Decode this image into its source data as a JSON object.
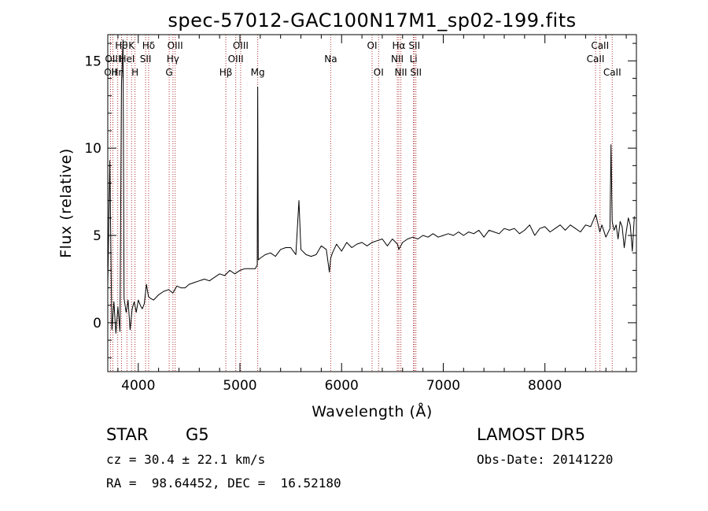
{
  "chart_data": {
    "type": "line",
    "title": "spec-57012-GAC100N17M1_sp02-199.fits",
    "xlabel": "Wavelength (Å)",
    "ylabel": "Flux (relative)",
    "xlim": [
      3700,
      8900
    ],
    "ylim": [
      -2.8,
      16.5
    ],
    "x_ticks": [
      4000,
      5000,
      6000,
      7000,
      8000
    ],
    "x_tick_labels": [
      "4000",
      "5000",
      "6000",
      "7000",
      "8000"
    ],
    "y_ticks": [
      0,
      5,
      10,
      15
    ],
    "y_tick_labels": [
      "0",
      "5",
      "10",
      "15"
    ],
    "grid": false,
    "series": [
      {
        "x": [
          3700,
          3720,
          3740,
          3760,
          3780,
          3800,
          3820,
          3835,
          3850,
          3860,
          3870,
          3880,
          3890,
          3900,
          3920,
          3940,
          3960,
          3970,
          3980,
          4000,
          4020,
          4040,
          4060,
          4080,
          4100,
          4120,
          4150,
          4200,
          4250,
          4300,
          4340,
          4380,
          4420,
          4460,
          4500,
          4550,
          4600,
          4650,
          4700,
          4750,
          4800,
          4850,
          4900,
          4950,
          5000,
          5050,
          5100,
          5150,
          5170,
          5175,
          5180,
          5200,
          5250,
          5300,
          5350,
          5400,
          5450,
          5500,
          5550,
          5580,
          5600,
          5650,
          5700,
          5750,
          5800,
          5850,
          5880,
          5893,
          5910,
          5950,
          6000,
          6050,
          6100,
          6150,
          6200,
          6250,
          6300,
          6350,
          6400,
          6450,
          6500,
          6550,
          6563,
          6600,
          6650,
          6700,
          6750,
          6800,
          6850,
          6900,
          6950,
          7000,
          7050,
          7100,
          7150,
          7200,
          7250,
          7300,
          7350,
          7400,
          7450,
          7500,
          7550,
          7600,
          7650,
          7700,
          7750,
          7800,
          7850,
          7900,
          7950,
          8000,
          8050,
          8100,
          8150,
          8200,
          8250,
          8300,
          8350,
          8400,
          8450,
          8500,
          8540,
          8560,
          8600,
          8640,
          8650,
          8662,
          8680,
          8700,
          8720,
          8740,
          8760,
          8780,
          8800,
          8820,
          8840,
          8860,
          8880
        ],
        "y": [
          2.1,
          9.3,
          -0.4,
          1.2,
          -0.6,
          0.9,
          -0.5,
          13.6,
          16.2,
          1.4,
          1.0,
          0.6,
          0.9,
          1.3,
          -0.4,
          0.8,
          1.2,
          0.9,
          0.6,
          1.3,
          1.0,
          0.8,
          1.1,
          2.2,
          1.5,
          1.4,
          1.3,
          1.6,
          1.8,
          1.9,
          1.7,
          2.1,
          2.0,
          2.0,
          2.2,
          2.3,
          2.4,
          2.5,
          2.4,
          2.6,
          2.8,
          2.7,
          3.0,
          2.8,
          3.0,
          3.1,
          3.1,
          3.1,
          3.3,
          13.5,
          3.6,
          3.7,
          3.9,
          4.0,
          3.8,
          4.2,
          4.3,
          4.3,
          3.9,
          7.0,
          4.2,
          3.9,
          3.8,
          3.9,
          4.4,
          4.2,
          2.9,
          3.7,
          4.0,
          4.5,
          4.1,
          4.6,
          4.3,
          4.5,
          4.6,
          4.4,
          4.6,
          4.7,
          4.8,
          4.4,
          4.8,
          4.5,
          4.2,
          4.6,
          4.8,
          4.9,
          4.8,
          5.0,
          4.9,
          5.1,
          4.9,
          5.0,
          5.1,
          5.0,
          5.2,
          5.0,
          5.2,
          5.1,
          5.3,
          4.9,
          5.3,
          5.2,
          5.1,
          5.4,
          5.3,
          5.4,
          5.1,
          5.3,
          5.6,
          5.0,
          5.4,
          5.5,
          5.2,
          5.4,
          5.6,
          5.3,
          5.6,
          5.4,
          5.2,
          5.6,
          5.5,
          6.2,
          5.2,
          5.6,
          4.9,
          5.4,
          10.2,
          5.8,
          5.3,
          5.6,
          4.8,
          5.8,
          5.5,
          4.3,
          5.2,
          6.0,
          5.6,
          4.1,
          6.1
        ]
      }
    ],
    "lines": [
      {
        "wl": 3727,
        "label": "OII",
        "row": 3
      },
      {
        "wl": 3750,
        "label": "OIII",
        "row": 2
      },
      {
        "wl": 3798,
        "label": "Hη",
        "row": 3
      },
      {
        "wl": 3835,
        "label": "Hθ",
        "row": 1
      },
      {
        "wl": 3889,
        "label": "HeI",
        "row": 2
      },
      {
        "wl": 3934,
        "label": "K",
        "row": 1
      },
      {
        "wl": 3968,
        "label": "H",
        "row": 3
      },
      {
        "wl": 4072,
        "label": "SII",
        "row": 2
      },
      {
        "wl": 4102,
        "label": "Hδ",
        "row": 1
      },
      {
        "wl": 4304,
        "label": "G",
        "row": 3
      },
      {
        "wl": 4341,
        "label": "Hγ",
        "row": 2
      },
      {
        "wl": 4363,
        "label": "OIII",
        "row": 1
      },
      {
        "wl": 4861,
        "label": "Hβ",
        "row": 3
      },
      {
        "wl": 4959,
        "label": "OIII",
        "row": 2
      },
      {
        "wl": 5007,
        "label": "OIII",
        "row": 1
      },
      {
        "wl": 5175,
        "label": "Mg",
        "row": 3
      },
      {
        "wl": 5893,
        "label": "Na",
        "row": 2
      },
      {
        "wl": 6300,
        "label": "OI",
        "row": 1
      },
      {
        "wl": 6364,
        "label": "OI",
        "row": 3
      },
      {
        "wl": 6548,
        "label": "NII",
        "row": 2
      },
      {
        "wl": 6563,
        "label": "Hα",
        "row": 1
      },
      {
        "wl": 6583,
        "label": "NII",
        "row": 3
      },
      {
        "wl": 6707,
        "label": "Li",
        "row": 2
      },
      {
        "wl": 6716,
        "label": "SII",
        "row": 1
      },
      {
        "wl": 6731,
        "label": "SII",
        "row": 3
      },
      {
        "wl": 8498,
        "label": "CaII",
        "row": 2
      },
      {
        "wl": 8542,
        "label": "CaII",
        "row": 1
      },
      {
        "wl": 8662,
        "label": "CaII",
        "row": 3
      }
    ],
    "line_color": "#000000",
    "marker_color": "#b03030"
  },
  "info": {
    "class": "STAR",
    "subclass": "G5",
    "survey": "LAMOST DR5",
    "velocity": "cz = 30.4 ± 22.1 km/s",
    "obs_date": "Obs-Date: 20141220",
    "coords": "RA =  98.64452, DEC =  16.52180"
  }
}
